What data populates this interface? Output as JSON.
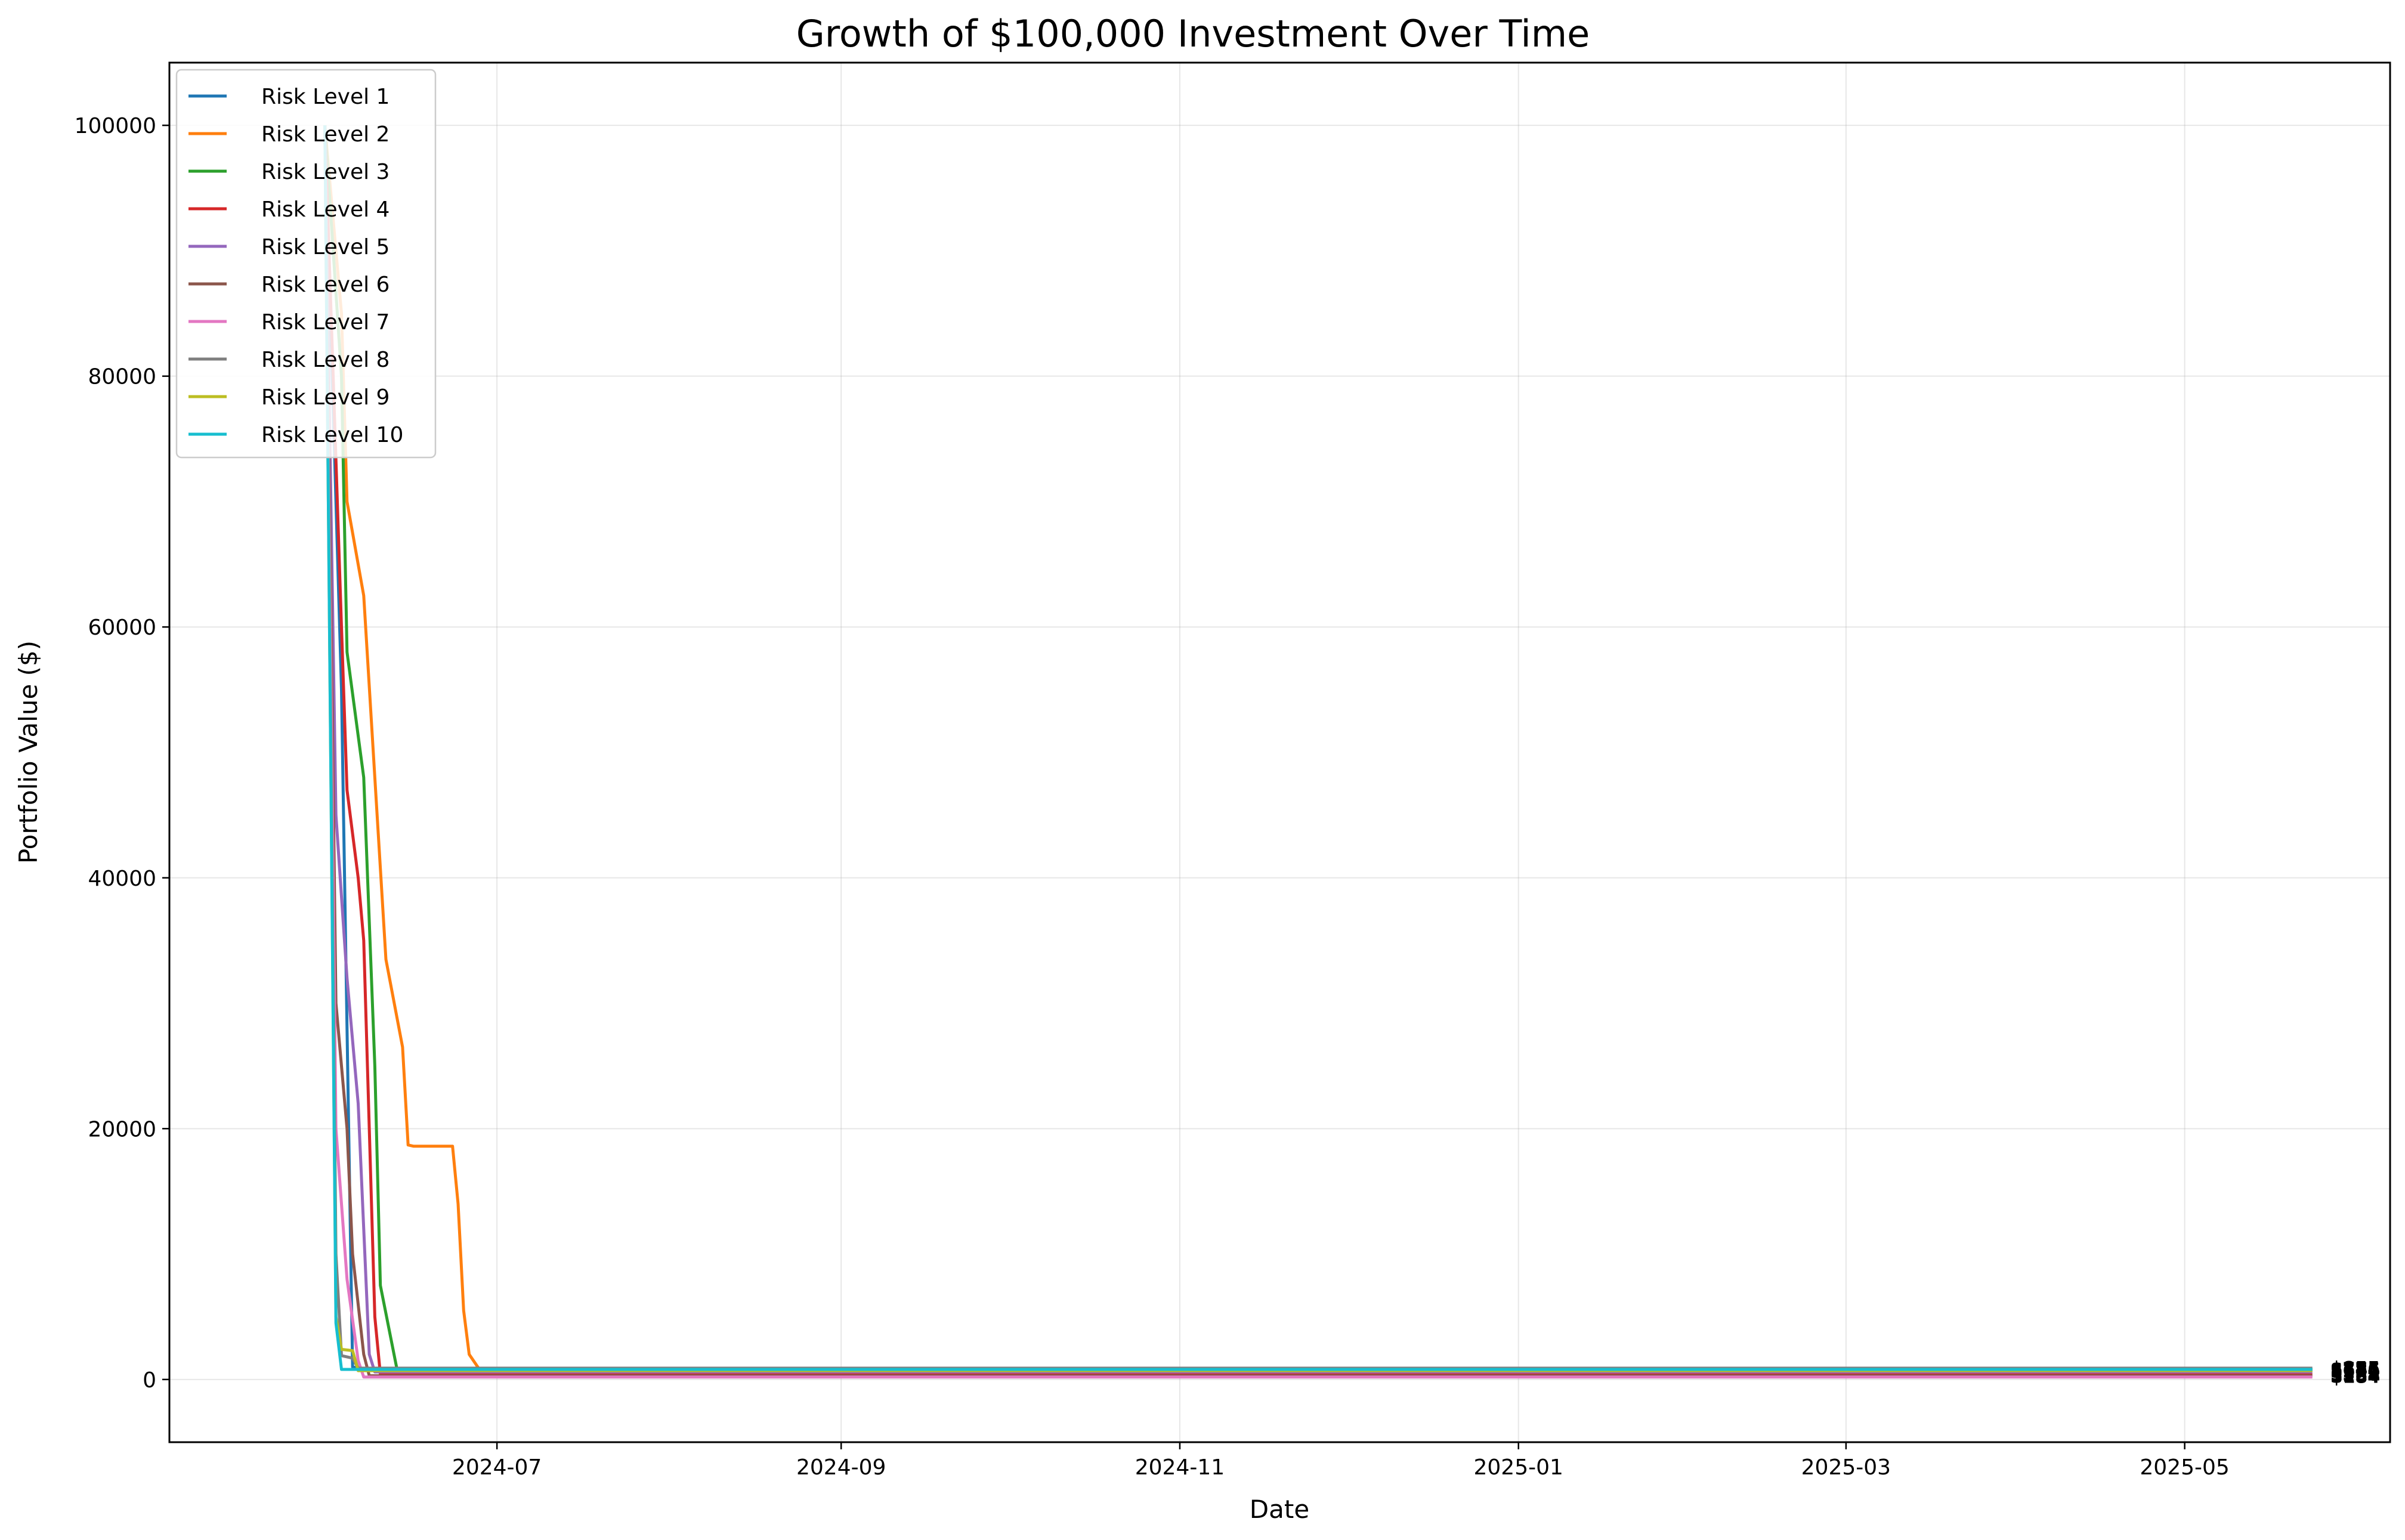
{
  "chart_data": {
    "type": "line",
    "title": "Growth of $100,000 Investment Over Time",
    "xlabel": "Date",
    "ylabel": "Portfolio Value ($)",
    "xlim": [
      "2024-05-03",
      "2025-06-07"
    ],
    "ylim": [
      -5000,
      105000
    ],
    "x_ticks": [
      "2024-07",
      "2024-09",
      "2024-11",
      "2025-01",
      "2025-03",
      "2025-05"
    ],
    "y_ticks": [
      0,
      20000,
      40000,
      60000,
      80000,
      100000
    ],
    "grid": true,
    "legend_position": "top-left",
    "series": [
      {
        "name": "Risk Level 1",
        "color": "#1f77b4",
        "points": [
          [
            "2024-05-31",
            100000
          ],
          [
            "2024-06-03",
            55000
          ],
          [
            "2024-06-05",
            1000
          ],
          [
            "2024-06-07",
            800
          ],
          [
            "2025-05-24",
            800
          ]
        ],
        "end_label": "$754"
      },
      {
        "name": "Risk Level 2",
        "color": "#ff7f0e",
        "points": [
          [
            "2024-05-31",
            100000
          ],
          [
            "2024-06-03",
            85000
          ],
          [
            "2024-06-04",
            70000
          ],
          [
            "2024-06-07",
            62500
          ],
          [
            "2024-06-09",
            48000
          ],
          [
            "2024-06-11",
            33500
          ],
          [
            "2024-06-14",
            26500
          ],
          [
            "2024-06-15",
            18700
          ],
          [
            "2024-06-16",
            18600
          ],
          [
            "2024-06-23",
            18600
          ],
          [
            "2024-06-24",
            14000
          ],
          [
            "2024-06-25",
            5500
          ],
          [
            "2024-06-26",
            2000
          ],
          [
            "2024-06-28",
            700
          ],
          [
            "2025-05-24",
            700
          ]
        ],
        "end_label": "$684"
      },
      {
        "name": "Risk Level 3",
        "color": "#2ca02c",
        "points": [
          [
            "2024-05-31",
            100000
          ],
          [
            "2024-06-03",
            80000
          ],
          [
            "2024-06-04",
            58000
          ],
          [
            "2024-06-07",
            48000
          ],
          [
            "2024-06-09",
            25000
          ],
          [
            "2024-06-10",
            7500
          ],
          [
            "2024-06-13",
            800
          ],
          [
            "2025-05-24",
            800
          ]
        ],
        "end_label": "$746"
      },
      {
        "name": "Risk Level 4",
        "color": "#d62728",
        "points": [
          [
            "2024-05-31",
            100000
          ],
          [
            "2024-06-03",
            60000
          ],
          [
            "2024-06-04",
            47000
          ],
          [
            "2024-06-06",
            40000
          ],
          [
            "2024-06-07",
            35000
          ],
          [
            "2024-06-08",
            20000
          ],
          [
            "2024-06-09",
            5000
          ],
          [
            "2024-06-10",
            400
          ],
          [
            "2025-05-24",
            400
          ]
        ],
        "end_label": "$388"
      },
      {
        "name": "Risk Level 5",
        "color": "#9467bd",
        "points": [
          [
            "2024-05-31",
            100000
          ],
          [
            "2024-06-02",
            45000
          ],
          [
            "2024-06-04",
            32000
          ],
          [
            "2024-06-06",
            22000
          ],
          [
            "2024-06-08",
            2000
          ],
          [
            "2024-06-09",
            600
          ],
          [
            "2025-05-24",
            600
          ]
        ],
        "end_label": "$571"
      },
      {
        "name": "Risk Level 6",
        "color": "#8c564b",
        "points": [
          [
            "2024-05-31",
            100000
          ],
          [
            "2024-06-02",
            30000
          ],
          [
            "2024-06-04",
            20000
          ],
          [
            "2024-06-05",
            10000
          ],
          [
            "2024-06-07",
            2000
          ],
          [
            "2024-06-08",
            300
          ],
          [
            "2025-05-24",
            300
          ]
        ],
        "end_label": "$254"
      },
      {
        "name": "Risk Level 7",
        "color": "#e377c2",
        "points": [
          [
            "2024-05-31",
            100000
          ],
          [
            "2024-06-02",
            20000
          ],
          [
            "2024-06-04",
            8000
          ],
          [
            "2024-06-06",
            1500
          ],
          [
            "2024-06-07",
            200
          ],
          [
            "2025-05-24",
            200
          ]
        ],
        "end_label": "$184"
      },
      {
        "name": "Risk Level 8",
        "color": "#7f7f7f",
        "points": [
          [
            "2024-05-31",
            100000
          ],
          [
            "2024-06-02",
            10000
          ],
          [
            "2024-06-03",
            1900
          ],
          [
            "2024-06-05",
            1700
          ],
          [
            "2024-06-06",
            900
          ],
          [
            "2025-05-24",
            900
          ]
        ],
        "end_label": "$855"
      },
      {
        "name": "Risk Level 9",
        "color": "#bcbd22",
        "points": [
          [
            "2024-05-31",
            100000
          ],
          [
            "2024-06-02",
            5000
          ],
          [
            "2024-06-03",
            2400
          ],
          [
            "2024-06-05",
            2300
          ],
          [
            "2024-06-06",
            700
          ],
          [
            "2025-05-24",
            700
          ]
        ],
        "end_label": "$731"
      },
      {
        "name": "Risk Level 10",
        "color": "#17becf",
        "points": [
          [
            "2024-05-31",
            100000
          ],
          [
            "2024-06-02",
            4500
          ],
          [
            "2024-06-03",
            800
          ],
          [
            "2025-05-24",
            800
          ]
        ],
        "end_label": "$774"
      }
    ]
  }
}
